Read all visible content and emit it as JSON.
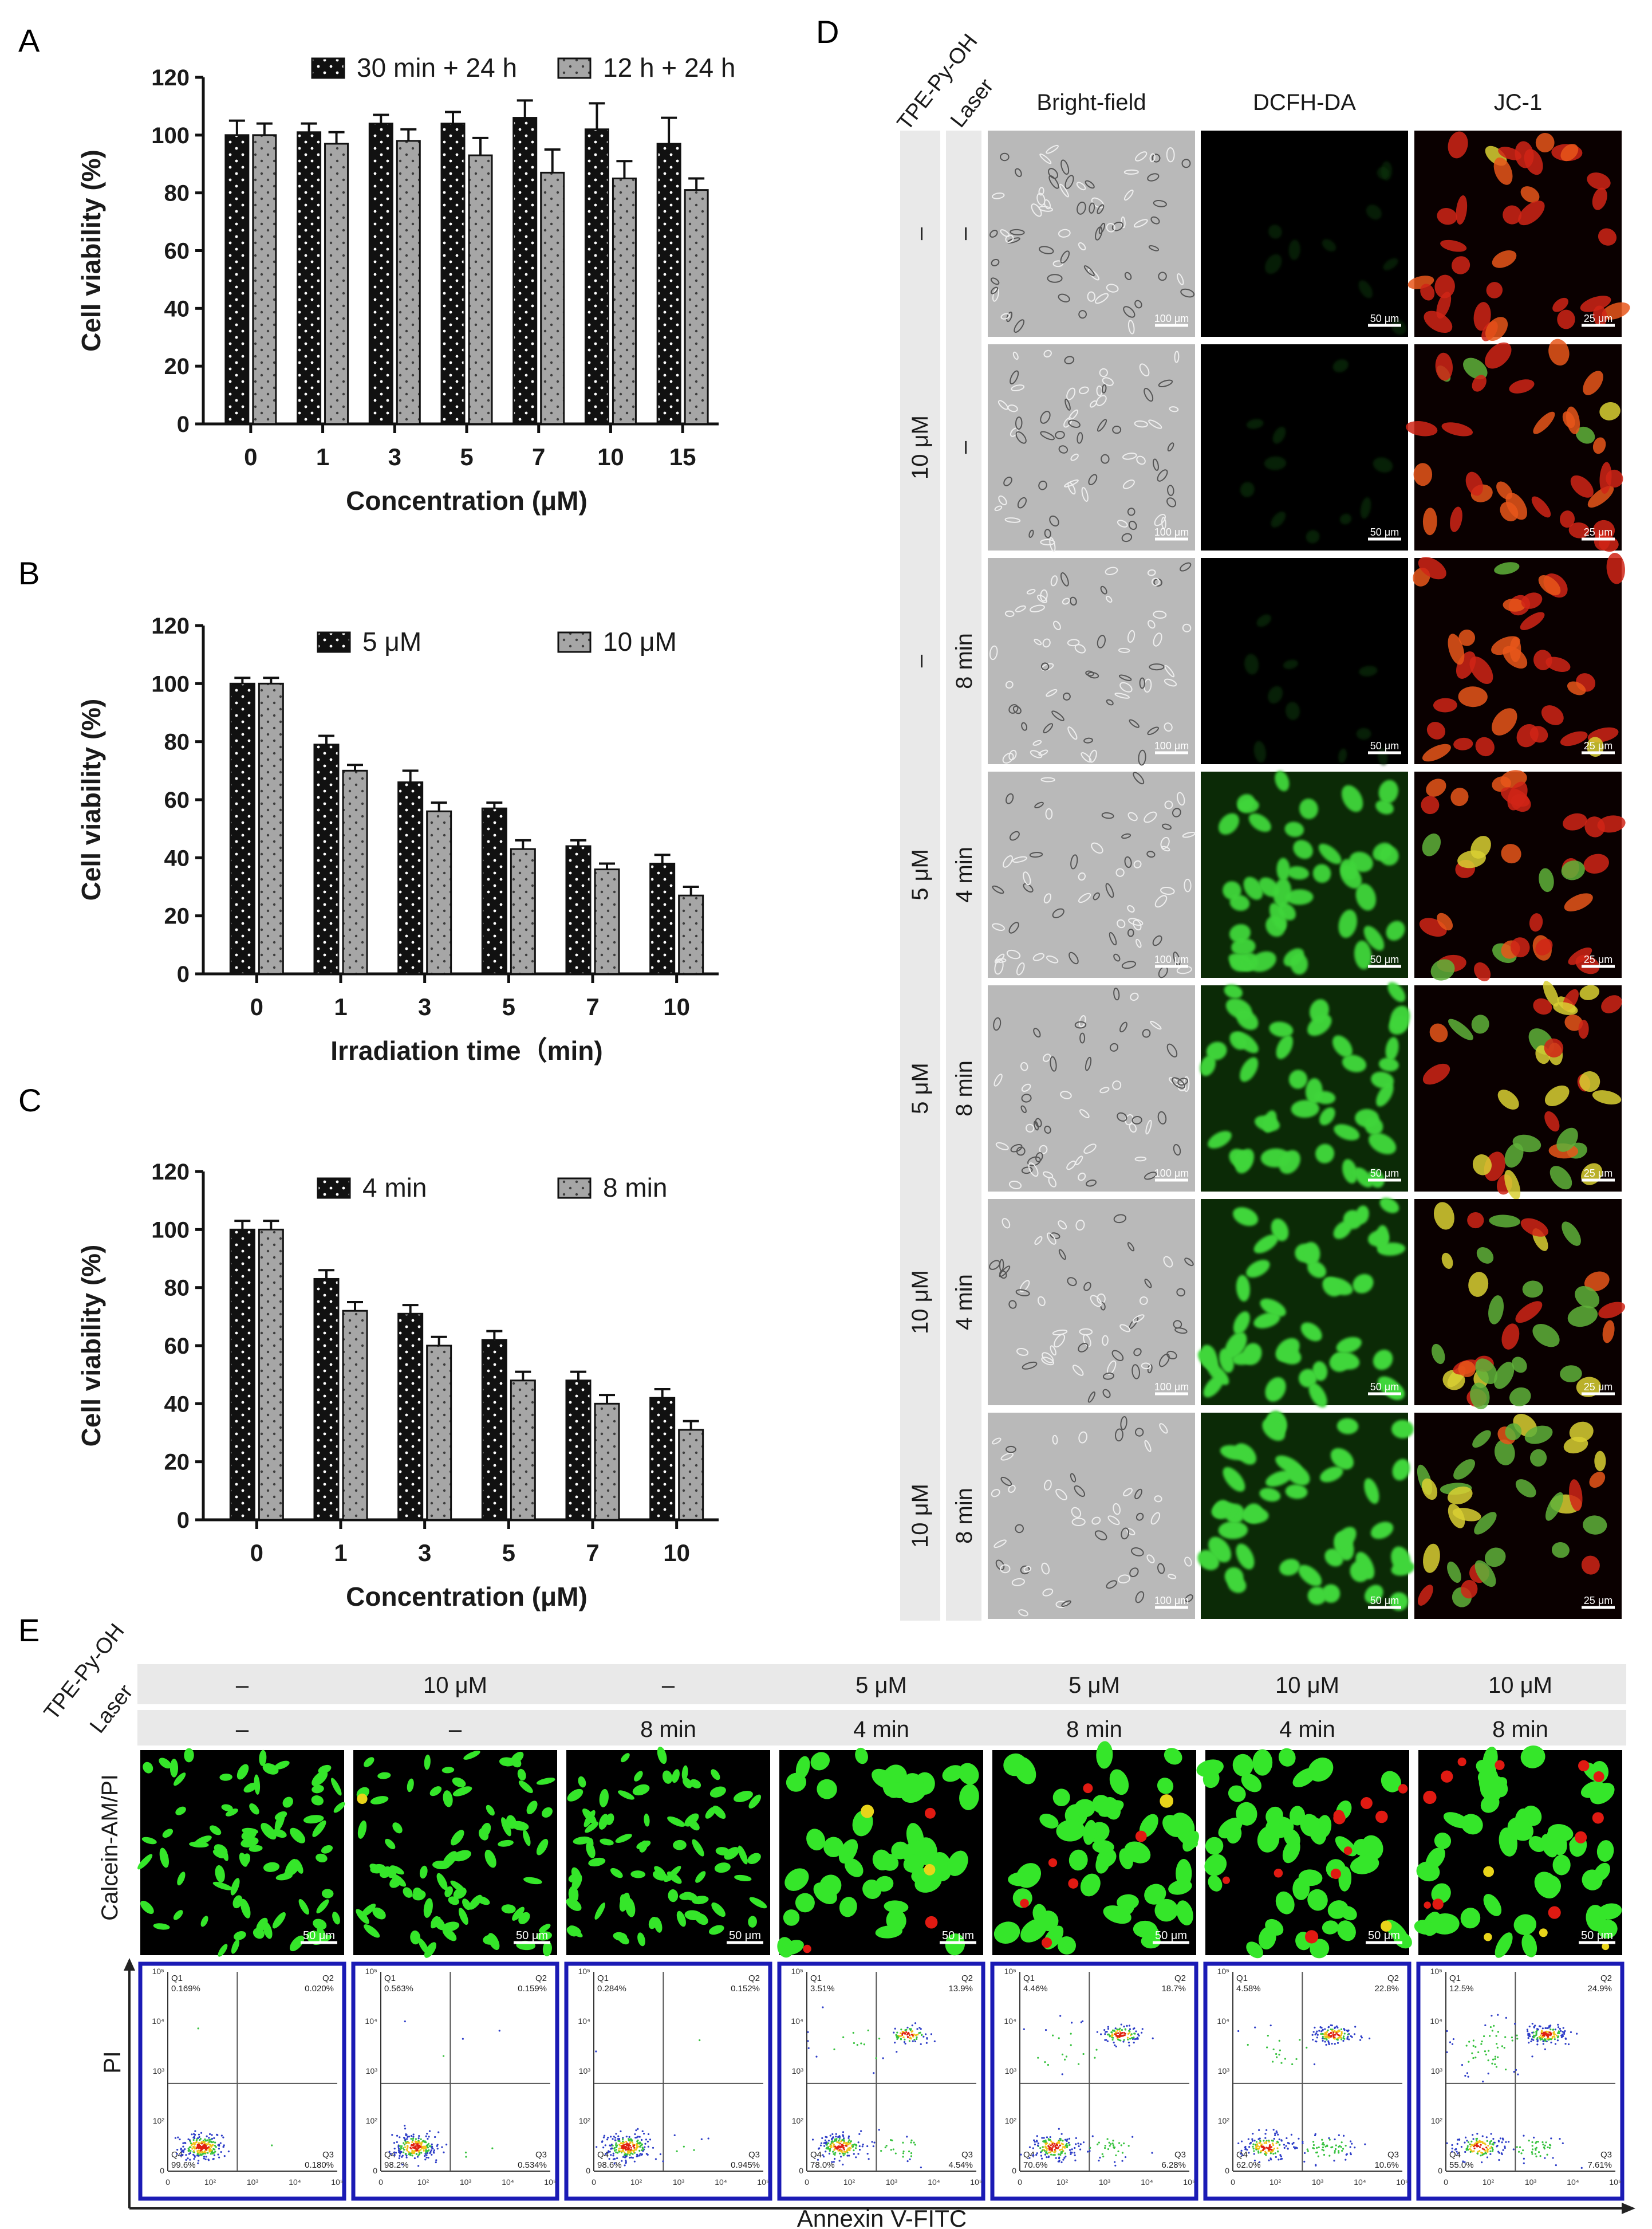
{
  "panels": {
    "A": "A",
    "B": "B",
    "C": "C",
    "D": "D",
    "E": "E"
  },
  "chart_data": [
    {
      "id": "A",
      "type": "bar",
      "ylabel": "Cell viability (%)",
      "xlabel": "Concentration (μM)",
      "categories": [
        "0",
        "1",
        "3",
        "5",
        "7",
        "10",
        "15"
      ],
      "ylim": [
        0,
        120
      ],
      "yticks": [
        "0",
        "20",
        "40",
        "60",
        "80",
        "100",
        "120"
      ],
      "legend_placement": "top",
      "series": [
        {
          "name": "30 min + 24 h",
          "values": [
            100,
            101,
            104,
            104,
            106,
            102,
            97
          ],
          "errors": [
            5,
            3,
            3,
            4,
            6,
            9,
            9
          ],
          "color": "#111111"
        },
        {
          "name": "12 h + 24 h",
          "values": [
            100,
            97,
            98,
            93,
            87,
            85,
            81
          ],
          "errors": [
            4,
            4,
            4,
            6,
            8,
            6,
            4
          ],
          "color": "#a6a6a6"
        }
      ]
    },
    {
      "id": "B",
      "type": "bar",
      "ylabel": "Cell viability (%)",
      "xlabel": "Irradiation time（min)",
      "categories": [
        "0",
        "1",
        "3",
        "5",
        "7",
        "10"
      ],
      "ylim": [
        0,
        120
      ],
      "yticks": [
        "0",
        "20",
        "40",
        "60",
        "80",
        "100",
        "120"
      ],
      "legend_placement": "top",
      "series": [
        {
          "name": "5 μM",
          "values": [
            100,
            79,
            66,
            57,
            44,
            38
          ],
          "errors": [
            2,
            3,
            4,
            2,
            2,
            3
          ],
          "color": "#111111"
        },
        {
          "name": "10 μM",
          "values": [
            100,
            70,
            56,
            43,
            36,
            27
          ],
          "errors": [
            2,
            2,
            3,
            3,
            2,
            3
          ],
          "color": "#a6a6a6"
        }
      ]
    },
    {
      "id": "C",
      "type": "bar",
      "ylabel": "Cell viability (%)",
      "xlabel": "Concentration (μM)",
      "categories": [
        "0",
        "1",
        "3",
        "5",
        "7",
        "10"
      ],
      "ylim": [
        0,
        120
      ],
      "yticks": [
        "0",
        "20",
        "40",
        "60",
        "80",
        "100",
        "120"
      ],
      "legend_placement": "top",
      "series": [
        {
          "name": "4 min",
          "values": [
            100,
            83,
            71,
            62,
            48,
            42
          ],
          "errors": [
            3,
            3,
            3,
            3,
            3,
            3
          ],
          "color": "#111111"
        },
        {
          "name": "8 min",
          "values": [
            100,
            72,
            60,
            48,
            40,
            31
          ],
          "errors": [
            3,
            3,
            3,
            3,
            3,
            3
          ],
          "color": "#a6a6a6"
        }
      ]
    }
  ],
  "panel_d": {
    "row_header_tpe": "TPE-Py-OH",
    "row_header_laser": "Laser",
    "columns": [
      "Bright-field",
      "DCFH-DA",
      "JC-1"
    ],
    "rows": [
      {
        "tpe": "–",
        "laser": "–",
        "dcfh": 0.0,
        "jc1_green": 0.05
      },
      {
        "tpe": "10 μM",
        "laser": "–",
        "dcfh": 0.12,
        "jc1_green": 0.1
      },
      {
        "tpe": "–",
        "laser": "8 min",
        "dcfh": 0.1,
        "jc1_green": 0.08
      },
      {
        "tpe": "5 μM",
        "laser": "4 min",
        "dcfh": 0.9,
        "jc1_green": 0.35
      },
      {
        "tpe": "5 μM",
        "laser": "8 min",
        "dcfh": 0.95,
        "jc1_green": 0.5
      },
      {
        "tpe": "10 μM",
        "laser": "4 min",
        "dcfh": 1.0,
        "jc1_green": 0.6
      },
      {
        "tpe": "10 μM",
        "laser": "8 min",
        "dcfh": 1.0,
        "jc1_green": 0.85
      }
    ],
    "scale_bars": [
      "100 μm",
      "50 μm",
      "25 μm"
    ]
  },
  "panel_e": {
    "row_header_tpe": "TPE-Py-OH",
    "row_header_laser": "Laser",
    "row_label_images": "Calcein-AM/PI",
    "axis_y_label": "PI",
    "axis_x_label": "Annexin V-FITC",
    "scale_bar": "50 μm",
    "groups": [
      {
        "tpe": "–",
        "laser": "–",
        "q1": "0.169%",
        "q2": "0.020%",
        "q3": "0.180%",
        "q4": "99.6%",
        "red": 0.0
      },
      {
        "tpe": "10 μM",
        "laser": "–",
        "q1": "0.563%",
        "q2": "0.159%",
        "q3": "0.534%",
        "q4": "98.2%",
        "red": 0.01
      },
      {
        "tpe": "–",
        "laser": "8 min",
        "q1": "0.284%",
        "q2": "0.152%",
        "q3": "0.945%",
        "q4": "98.6%",
        "red": 0.0
      },
      {
        "tpe": "5 μM",
        "laser": "4 min",
        "q1": "3.51%",
        "q2": "13.9%",
        "q3": "4.54%",
        "q4": "78.0%",
        "red": 0.08
      },
      {
        "tpe": "5 μM",
        "laser": "8 min",
        "q1": "4.46%",
        "q2": "18.7%",
        "q3": "6.28%",
        "q4": "70.6%",
        "red": 0.12
      },
      {
        "tpe": "10 μM",
        "laser": "4 min",
        "q1": "4.58%",
        "q2": "22.8%",
        "q3": "10.6%",
        "q4": "62.0%",
        "red": 0.18
      },
      {
        "tpe": "10 μM",
        "laser": "8 min",
        "q1": "12.5%",
        "q2": "24.9%",
        "q3": "7.61%",
        "q4": "55.0%",
        "red": 0.25
      }
    ],
    "quad_labels": [
      "Q1",
      "Q2",
      "Q3",
      "Q4"
    ],
    "flow_ticks": [
      "0",
      "10²",
      "10³",
      "10⁴",
      "10⁵"
    ]
  }
}
